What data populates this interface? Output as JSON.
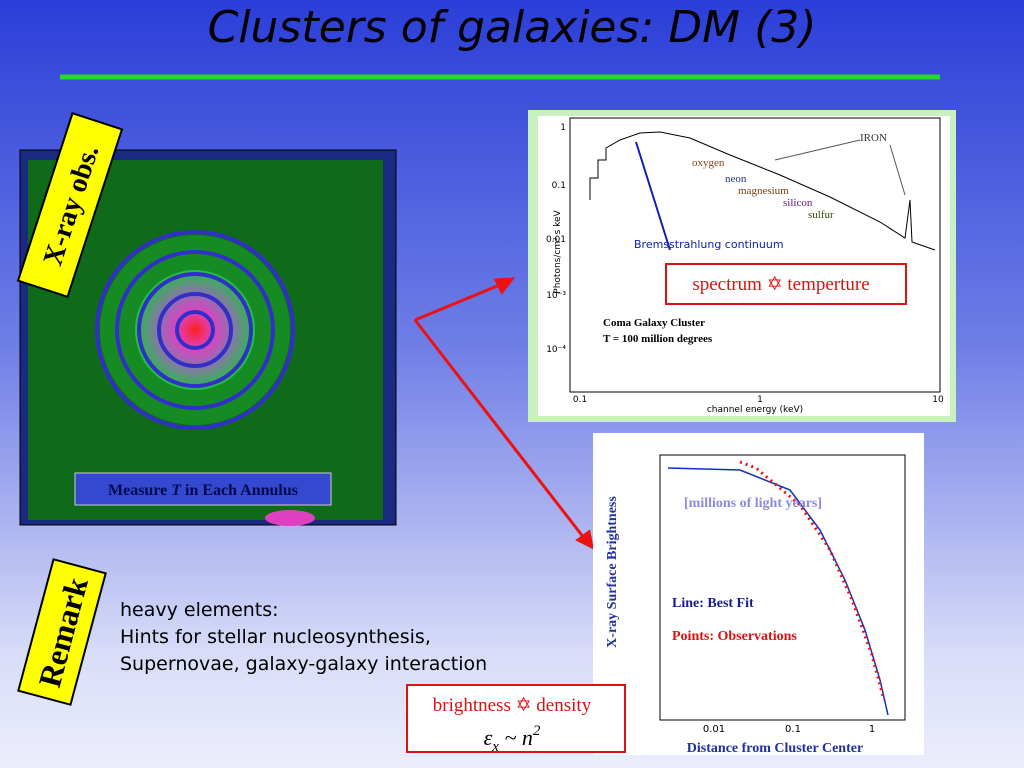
{
  "title": "Clusters of galaxies: DM (3)",
  "xray": {
    "label": "X-ray obs.",
    "caption": {
      "before": "Measure ",
      "variable": "T",
      "after": " in Each Annulus"
    }
  },
  "spectrum": {
    "ylabel": "Photons/cm² s keV",
    "xlabel": "channel energy (keV)",
    "xticks": [
      "0.1",
      "1",
      "10"
    ],
    "yticks": [
      "1",
      "0.1",
      "0.01",
      "10⁻³",
      "10⁻⁴"
    ],
    "annotations": {
      "iron": "IRON",
      "oxygen": "oxygen",
      "neon": "neon",
      "magnesium": "magnesium",
      "silicon": "silicon",
      "sulfur": "sulfur",
      "continuum": "Bremsstrahlung continuum",
      "cluster": "Coma Galaxy Cluster",
      "temperature": "T = 100 million degrees"
    },
    "box": "spectrum ✡ temperture"
  },
  "brightness": {
    "ylabel": "X-ray Surface Brightness",
    "xlabel": "Distance from Cluster Center",
    "xticks": [
      "0.01",
      "0.1",
      "1"
    ],
    "units": "[millions of light years]",
    "line_label": "Line: Best Fit",
    "points_label": "Points: Observations",
    "box": "brightness ✡ density",
    "formula": {
      "symbol": "ε",
      "subscript": "x",
      "relation": " ~ n",
      "exponent": "2"
    }
  },
  "remark": {
    "label": "Remark",
    "lines": [
      "heavy elements:",
      "Hints for stellar nucleosynthesis,",
      "Supernovae, galaxy-galaxy interaction"
    ]
  }
}
